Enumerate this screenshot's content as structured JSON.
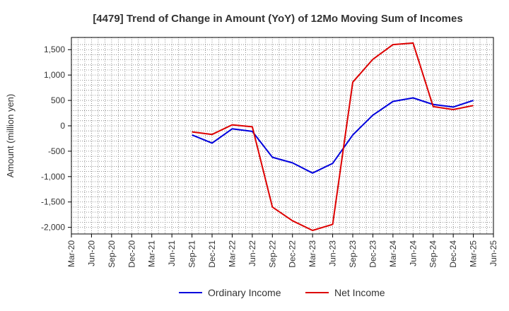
{
  "chart_data": {
    "type": "line",
    "title": "[4479]  Trend of Change in Amount (YoY) of 12Mo Moving Sum of Incomes",
    "xlabel": "",
    "ylabel": "Amount (million yen)",
    "categories": [
      "Mar-20",
      "Jun-20",
      "Sep-20",
      "Dec-20",
      "Mar-21",
      "Jun-21",
      "Sep-21",
      "Dec-21",
      "Mar-22",
      "Jun-22",
      "Sep-22",
      "Dec-22",
      "Mar-23",
      "Jun-23",
      "Sep-23",
      "Dec-23",
      "Mar-24",
      "Jun-24",
      "Sep-24",
      "Dec-24",
      "Mar-25",
      "Jun-25"
    ],
    "ylim": [
      -2130,
      1740
    ],
    "yticks": [
      1500,
      1000,
      500,
      0,
      -500,
      -1000,
      -1500,
      -2000
    ],
    "ytick_labels": [
      "1,500",
      "1,000",
      "500",
      "0",
      "-500",
      "-1,000",
      "-1,500",
      "-2,000"
    ],
    "grid": true,
    "legend_position": "bottom",
    "series": [
      {
        "name": "Ordinary Income",
        "color": "#0000dd",
        "values": [
          null,
          null,
          null,
          null,
          null,
          null,
          -180,
          -340,
          -60,
          -110,
          -620,
          -730,
          -930,
          -740,
          -180,
          210,
          480,
          550,
          420,
          370,
          500,
          null
        ]
      },
      {
        "name": "Net Income",
        "color": "#dd0000",
        "values": [
          null,
          null,
          null,
          null,
          null,
          null,
          -120,
          -170,
          20,
          -20,
          -1600,
          -1870,
          -2060,
          -1940,
          860,
          1310,
          1600,
          1630,
          380,
          320,
          400,
          null
        ]
      }
    ]
  }
}
